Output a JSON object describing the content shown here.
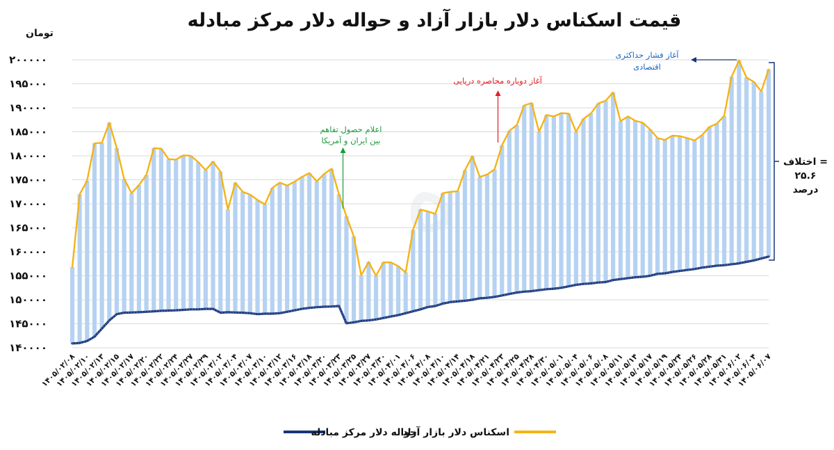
{
  "chart_data": {
    "type": "line",
    "title": "قیمت اسکناس دلار بازار آزاد و حواله دلار مرکز مبادله",
    "ylabel": "تومان",
    "ylim": [
      140000,
      200000
    ],
    "yticks": [
      "۱۴۰۰۰۰",
      "۱۴۵۰۰۰",
      "۱۵۰۰۰۰",
      "۱۵۵۰۰۰",
      "۱۶۰۰۰۰",
      "۱۶۵۰۰۰",
      "۱۷۰۰۰۰",
      "۱۷۵۰۰۰",
      "۱۸۰۰۰۰",
      "۱۸۵۰۰۰",
      "۱۹۰۰۰۰",
      "۱۹۵۰۰۰",
      "۲۰۰۰۰۰"
    ],
    "ytick_values": [
      140000,
      145000,
      150000,
      155000,
      160000,
      165000,
      170000,
      175000,
      180000,
      185000,
      190000,
      195000,
      200000
    ],
    "grid": true,
    "legend_position": "bottom",
    "x_labels": [
      "۱۴۰۵/۰۲/۰۸",
      "۱۴۰۵/۰۲/۱۰",
      "۱۴۰۵/۰۲/۱۳",
      "۱۴۰۵/۰۲/۱۵",
      "۱۴۰۵/۰۲/۱۷",
      "۱۴۰۵/۰۲/۲۰",
      "۱۴۰۵/۰۲/۲۲",
      "۱۴۰۵/۰۲/۲۴",
      "۱۴۰۵/۰۲/۲۷",
      "۱۴۰۵/۰۲/۲۹",
      "۱۴۰۵/۰۳/۰۲",
      "۱۴۰۵/۰۳/۰۴",
      "۱۴۰۵/۰۳/۰۷",
      "۱۴۰۵/۰۳/۱۰",
      "۱۴۰۵/۰۳/۱۲",
      "۱۴۰۵/۰۳/۱۶",
      "۱۴۰۵/۰۳/۱۸",
      "۱۴۰۵/۰۳/۲۰",
      "۱۴۰۵/۰۳/۲۳",
      "۱۴۰۵/۰۳/۲۵",
      "۱۴۰۵/۰۳/۲۷",
      "۱۴۰۵/۰۳/۳۰",
      "۱۴۰۵/۰۴/۰۱",
      "۱۴۰۵/۰۴/۰۶",
      "۱۴۰۵/۰۴/۰۸",
      "۱۴۰۵/۰۴/۱۰",
      "۱۴۰۵/۰۴/۱۴",
      "۱۴۰۵/۰۴/۱۸",
      "۱۴۰۵/۰۴/۲۱",
      "۱۴۰۵/۰۴/۲۳",
      "۱۴۰۵/۰۴/۲۵",
      "۱۴۰۵/۰۴/۲۸",
      "۱۴۰۵/۰۴/۳۰",
      "۱۴۰۵/۰۵/۰۱",
      "۱۴۰۵/۰۵/۰۴",
      "۱۴۰۵/۰۵/۰۶",
      "۱۴۰۵/۰۵/۰۸",
      "۱۴۰۵/۰۵/۱۱",
      "۱۴۰۵/۰۵/۱۴",
      "۱۴۰۵/۰۵/۱۷",
      "۱۴۰۵/۰۵/۱۹",
      "۱۴۰۵/۰۵/۲۴",
      "۱۴۰۵/۰۵/۲۶",
      "۱۴۰۵/۰۵/۲۸",
      "۱۴۰۵/۰۵/۳۱",
      "۱۴۰۵/۰۶/۰۲",
      "۱۴۰۵/۰۶/۰۴",
      "۱۴۰۵/۰۶/۰۷"
    ],
    "series": [
      {
        "name": "اسکناس دلار بازار آزاد",
        "color": "#f5b315",
        "values": [
          156800,
          172000,
          174800,
          182600,
          182700,
          186900,
          181600,
          175200,
          172200,
          173900,
          176000,
          181600,
          181500,
          179300,
          179200,
          180100,
          180000,
          178700,
          177000,
          178800,
          176700,
          168800,
          174400,
          172500,
          171900,
          170800,
          169900,
          173300,
          174400,
          173800,
          174600,
          175600,
          176400,
          174700,
          176200,
          177300,
          172000,
          167400,
          163200,
          155100,
          157900,
          155000,
          157800,
          157800,
          157000,
          155700,
          164600,
          168800,
          168400,
          167900,
          172200,
          172500,
          172600,
          177000,
          179900,
          175600,
          176100,
          177200,
          182200,
          185200,
          186400,
          190500,
          191000,
          185000,
          188500,
          188200,
          188900,
          188800,
          185000,
          187700,
          188800,
          190900,
          191500,
          193200,
          187200,
          188200,
          187300,
          186900,
          185500,
          183700,
          183300,
          184200,
          184100,
          183700,
          183200,
          184300,
          186000,
          186700,
          188300,
          196500,
          199900,
          196300,
          195400,
          193400,
          198000
        ]
      },
      {
        "name": "حواله دلار مرکز مبادله",
        "color": "#17357a",
        "values": [
          140900,
          141000,
          141400,
          142300,
          144000,
          145700,
          147000,
          147300,
          147350,
          147400,
          147500,
          147600,
          147700,
          147750,
          147800,
          147900,
          148000,
          148000,
          148100,
          148100,
          147300,
          147400,
          147350,
          147300,
          147200,
          147000,
          147100,
          147100,
          147200,
          147500,
          147800,
          148100,
          148300,
          148450,
          148550,
          148600,
          148700,
          145100,
          145300,
          145600,
          145700,
          145900,
          146200,
          146500,
          146800,
          147200,
          147600,
          148000,
          148500,
          148700,
          149200,
          149500,
          149650,
          149800,
          150000,
          150300,
          150400,
          150600,
          150900,
          151200,
          151500,
          151700,
          151800,
          152000,
          152200,
          152300,
          152500,
          152800,
          153100,
          153300,
          153400,
          153600,
          153700,
          154100,
          154300,
          154500,
          154700,
          154800,
          155000,
          155400,
          155500,
          155800,
          156000,
          156200,
          156400,
          156700,
          156900,
          157100,
          157200,
          157400,
          157600,
          157900,
          158200,
          158600,
          159000
        ]
      }
    ]
  },
  "annotations": {
    "agreement_line1": "اعلام حصول تفاهم",
    "agreement_line2": "بین ایران و آمریکا",
    "agreement_color": "#1a9a3a",
    "blockade": "آغاز دوباره محاصره دریایی",
    "blockade_color": "#e21b23",
    "pressure_line1": "آغاز فشار حداکثری",
    "pressure_line2": "اقتصادی",
    "pressure_color": "#1565c0",
    "diff_line1": "اختلاف =",
    "diff_line2": "۲۵.۶",
    "diff_line3": "درصد"
  }
}
